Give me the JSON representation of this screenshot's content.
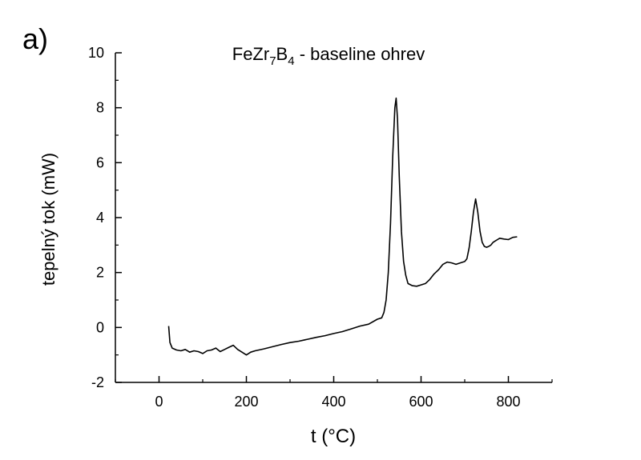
{
  "panel_label": "a)",
  "chart_data": {
    "type": "line",
    "title_prefix": "FeZr",
    "title_sub_1": "7",
    "title_mid": "B",
    "title_sub_2": "4",
    "title_suffix": " - baseline ohrev",
    "xlabel": "t (°C)",
    "ylabel": "tepelný tok (mW)",
    "xlim": [
      -100,
      900
    ],
    "ylim": [
      -2,
      10
    ],
    "x_ticks": [
      0,
      200,
      400,
      600,
      800
    ],
    "y_ticks": [
      -2,
      0,
      2,
      4,
      6,
      8,
      10
    ],
    "grid": false,
    "series": [
      {
        "color": "#000000",
        "x": [
          22,
          25,
          30,
          40,
          50,
          60,
          70,
          80,
          90,
          100,
          110,
          120,
          130,
          140,
          150,
          160,
          170,
          180,
          190,
          200,
          210,
          220,
          240,
          260,
          280,
          300,
          320,
          340,
          360,
          380,
          400,
          420,
          440,
          460,
          480,
          500,
          510,
          515,
          520,
          525,
          530,
          535,
          540,
          543,
          546,
          550,
          555,
          560,
          565,
          570,
          580,
          590,
          600,
          610,
          620,
          630,
          640,
          650,
          660,
          670,
          680,
          690,
          700,
          705,
          710,
          715,
          720,
          725,
          730,
          735,
          740,
          745,
          750,
          755,
          760,
          765,
          770,
          775,
          780,
          790,
          800,
          810,
          820
        ],
        "y": [
          0.05,
          -0.55,
          -0.75,
          -0.82,
          -0.85,
          -0.8,
          -0.9,
          -0.85,
          -0.88,
          -0.95,
          -0.85,
          -0.82,
          -0.75,
          -0.88,
          -0.8,
          -0.72,
          -0.65,
          -0.8,
          -0.9,
          -1.0,
          -0.9,
          -0.85,
          -0.78,
          -0.7,
          -0.62,
          -0.55,
          -0.5,
          -0.43,
          -0.36,
          -0.3,
          -0.22,
          -0.15,
          -0.05,
          0.05,
          0.12,
          0.3,
          0.35,
          0.55,
          1.0,
          2.0,
          3.8,
          6.2,
          8.0,
          8.35,
          7.6,
          5.5,
          3.5,
          2.4,
          1.9,
          1.6,
          1.52,
          1.5,
          1.55,
          1.6,
          1.75,
          1.95,
          2.1,
          2.3,
          2.38,
          2.35,
          2.3,
          2.35,
          2.4,
          2.5,
          2.9,
          3.5,
          4.2,
          4.68,
          4.2,
          3.5,
          3.1,
          2.95,
          2.92,
          2.95,
          3.0,
          3.1,
          3.15,
          3.2,
          3.25,
          3.22,
          3.2,
          3.28,
          3.3
        ]
      }
    ]
  }
}
